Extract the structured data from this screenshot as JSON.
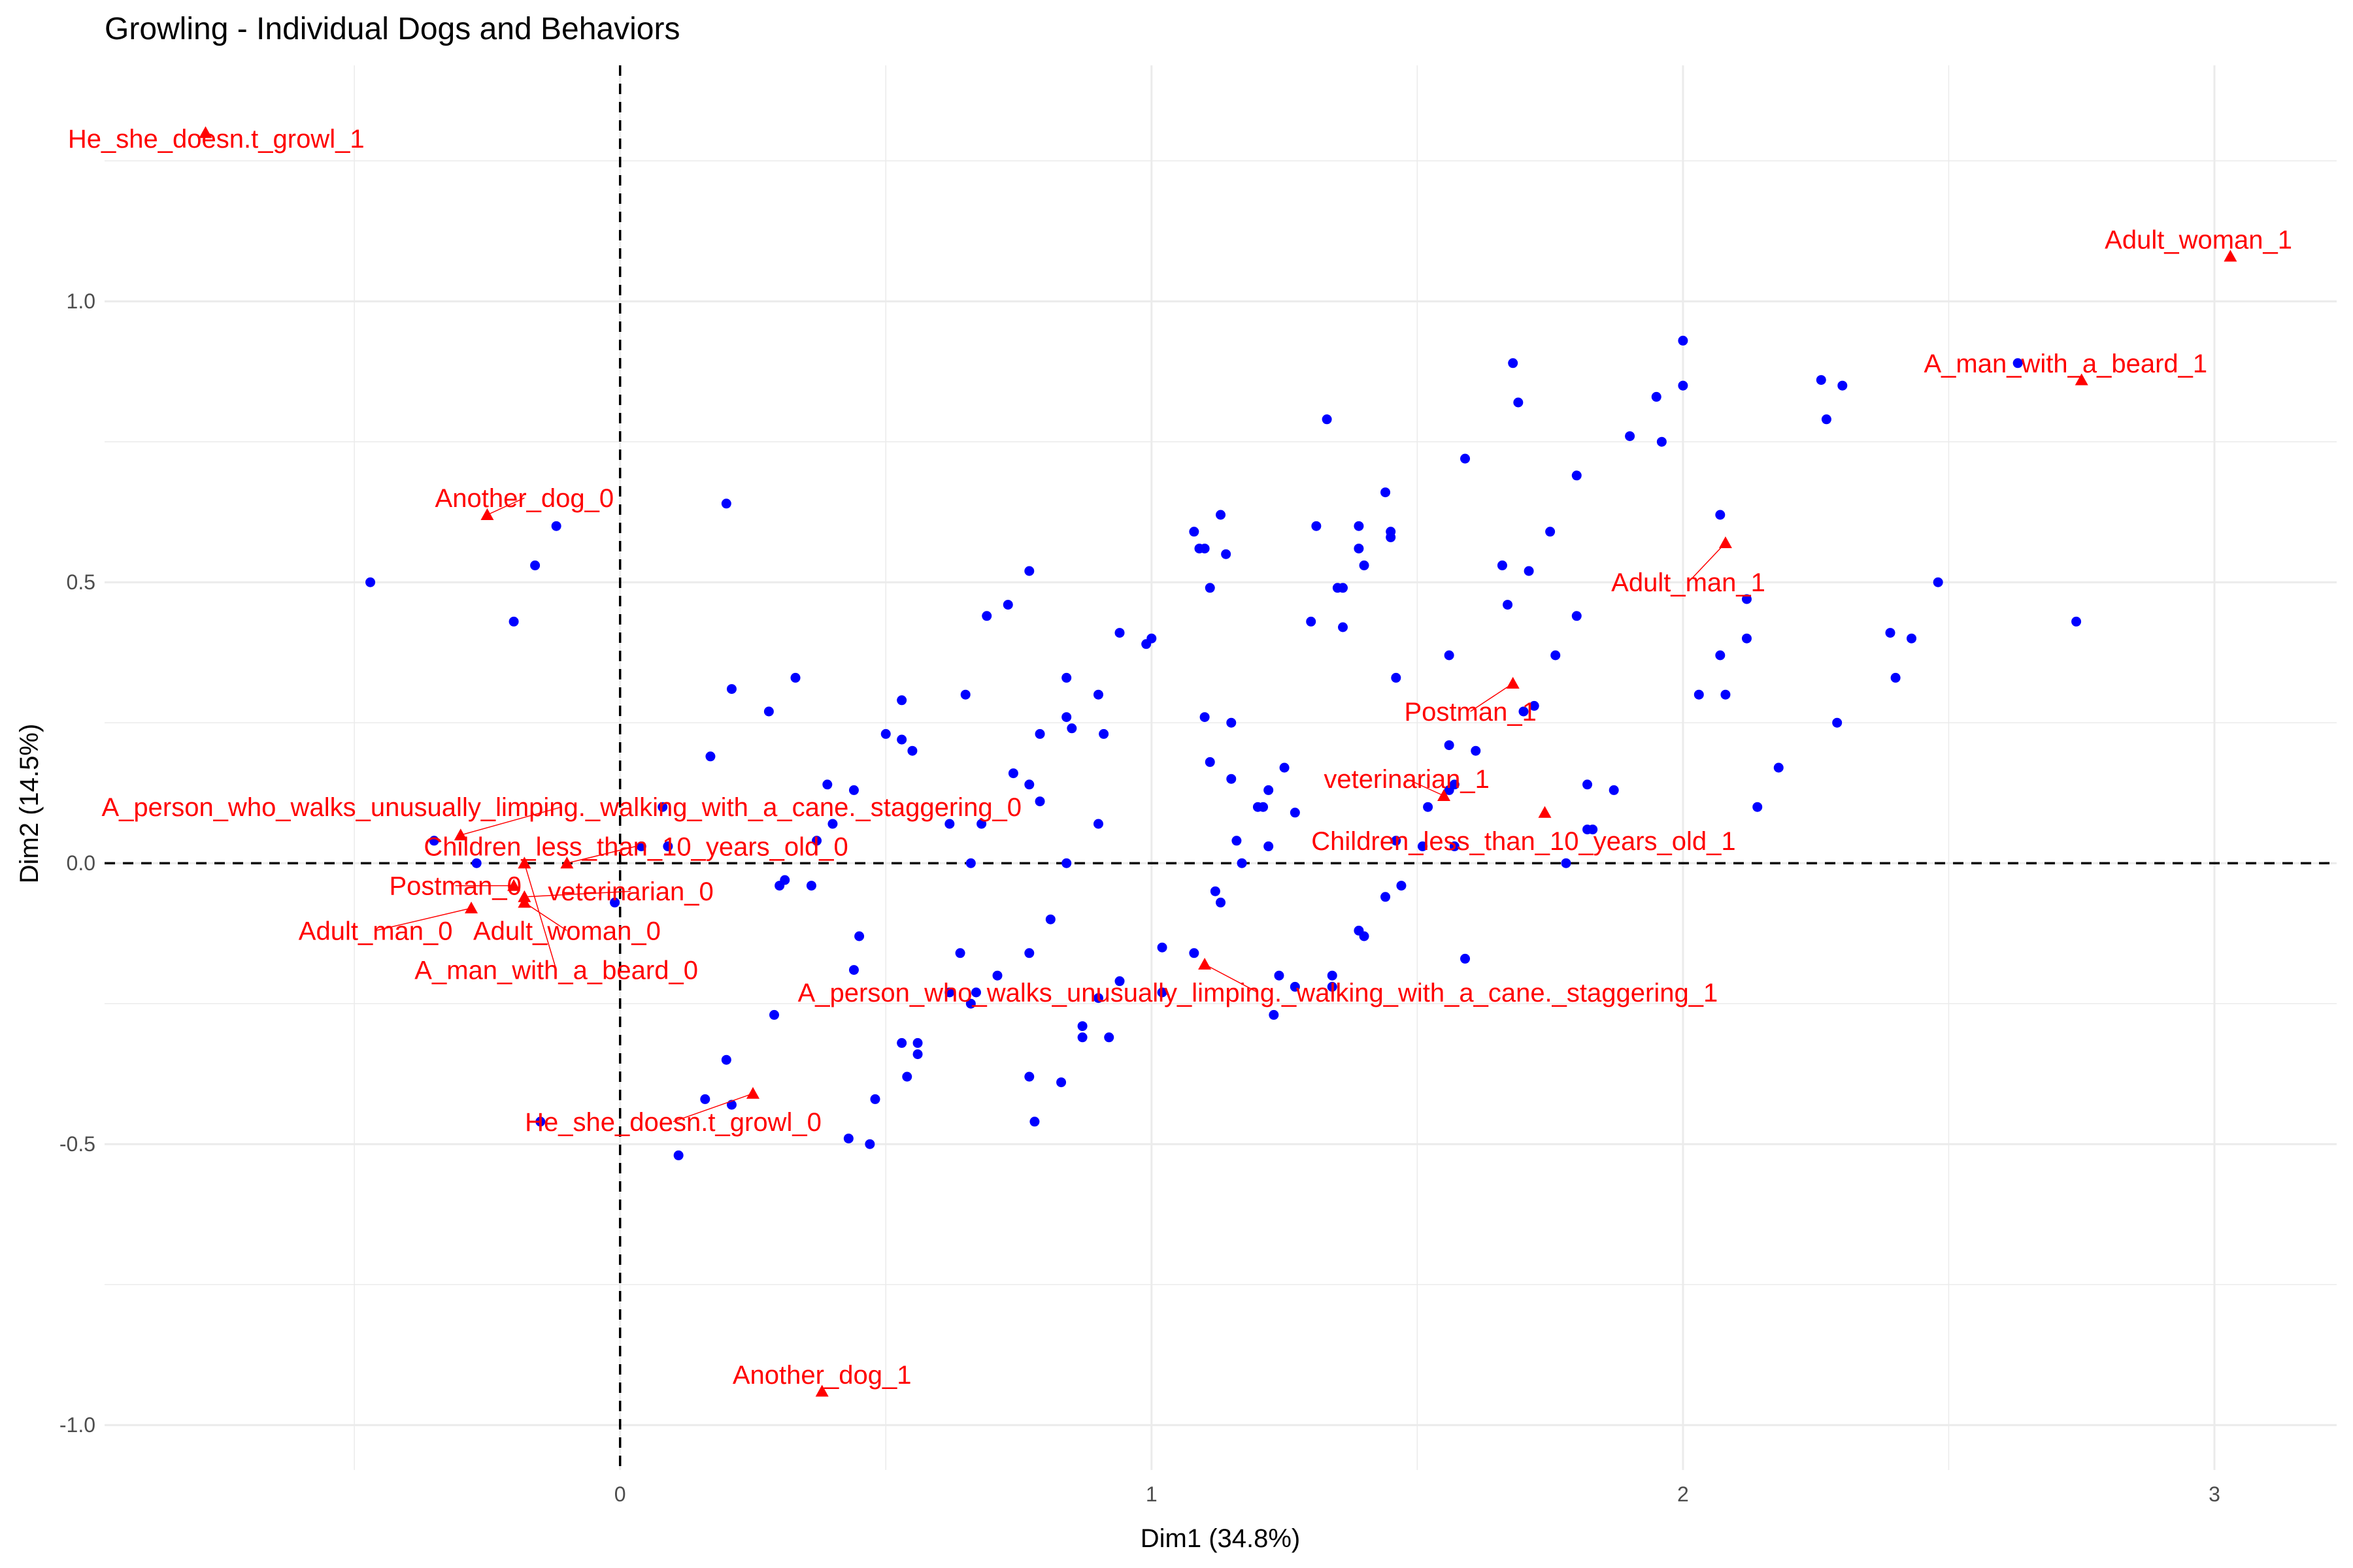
{
  "chart_data": {
    "type": "scatter",
    "title": "Growling - Individual Dogs and Behaviors",
    "xlabel": "Dim1 (34.8%)",
    "ylabel": "Dim2 (14.5%)",
    "xlim": [
      -0.97,
      3.23
    ],
    "ylim": [
      -1.08,
      1.42
    ],
    "x_ticks": [
      0,
      1,
      2,
      3
    ],
    "x_tick_labels": [
      "0",
      "1",
      "2",
      "3"
    ],
    "y_ticks": [
      -1.0,
      -0.5,
      0.0,
      0.5,
      1.0
    ],
    "y_tick_labels": [
      "-1.0",
      "-0.5",
      "0.0",
      "0.5",
      "1.0"
    ],
    "grid": true,
    "reference_lines": {
      "x": 0,
      "y": 0,
      "style": "dashed"
    },
    "colors": {
      "individuals": "#0000ff",
      "categories": "#ff0000",
      "grid": "#ebebeb",
      "reference": "#000000"
    },
    "individuals": [
      [
        -0.47,
        0.5
      ],
      [
        -0.2,
        0.43
      ],
      [
        -0.16,
        0.53
      ],
      [
        -0.12,
        0.6
      ],
      [
        0.2,
        0.64
      ],
      [
        -0.35,
        0.04
      ],
      [
        -0.27,
        0.0
      ],
      [
        -0.01,
        -0.07
      ],
      [
        0.04,
        0.03
      ],
      [
        0.08,
        0.1
      ],
      [
        0.09,
        0.03
      ],
      [
        0.17,
        0.19
      ],
      [
        0.21,
        0.31
      ],
      [
        0.28,
        0.27
      ],
      [
        0.33,
        0.33
      ],
      [
        0.37,
        0.04
      ],
      [
        0.36,
        -0.04
      ],
      [
        0.3,
        -0.04
      ],
      [
        0.31,
        -0.03
      ],
      [
        0.39,
        0.14
      ],
      [
        0.4,
        0.07
      ],
      [
        0.44,
        0.13
      ],
      [
        0.45,
        -0.13
      ],
      [
        0.5,
        0.23
      ],
      [
        0.53,
        0.29
      ],
      [
        0.53,
        0.22
      ],
      [
        0.55,
        0.2
      ],
      [
        0.65,
        0.3
      ],
      [
        0.69,
        0.44
      ],
      [
        0.73,
        0.46
      ],
      [
        0.77,
        0.52
      ],
      [
        0.68,
        0.07
      ],
      [
        0.62,
        0.07
      ],
      [
        0.66,
        0.0
      ],
      [
        0.74,
        0.16
      ],
      [
        0.77,
        0.14
      ],
      [
        0.79,
        0.11
      ],
      [
        0.79,
        0.23
      ],
      [
        0.84,
        0.33
      ],
      [
        0.84,
        0.26
      ],
      [
        0.85,
        0.24
      ],
      [
        0.9,
        0.3
      ],
      [
        0.91,
        0.23
      ],
      [
        0.9,
        0.07
      ],
      [
        0.94,
        0.41
      ],
      [
        0.99,
        0.39
      ],
      [
        1.0,
        0.4
      ],
      [
        0.84,
        0.0
      ],
      [
        0.81,
        -0.1
      ],
      [
        0.64,
        -0.16
      ],
      [
        0.67,
        -0.23
      ],
      [
        0.71,
        -0.2
      ],
      [
        0.77,
        -0.16
      ],
      [
        0.9,
        -0.24
      ],
      [
        0.94,
        -0.21
      ],
      [
        0.62,
        -0.23
      ],
      [
        0.66,
        -0.25
      ],
      [
        0.44,
        -0.19
      ],
      [
        0.29,
        -0.27
      ],
      [
        0.53,
        -0.32
      ],
      [
        0.56,
        -0.34
      ],
      [
        0.56,
        -0.32
      ],
      [
        0.54,
        -0.38
      ],
      [
        0.48,
        -0.42
      ],
      [
        0.43,
        -0.49
      ],
      [
        0.47,
        -0.5
      ],
      [
        0.2,
        -0.35
      ],
      [
        0.16,
        -0.42
      ],
      [
        0.21,
        -0.43
      ],
      [
        0.11,
        -0.52
      ],
      [
        -0.15,
        -0.46
      ],
      [
        0.77,
        -0.38
      ],
      [
        0.83,
        -0.39
      ],
      [
        0.78,
        -0.46
      ],
      [
        0.87,
        -0.29
      ],
      [
        0.87,
        -0.31
      ],
      [
        0.92,
        -0.31
      ],
      [
        1.02,
        -0.15
      ],
      [
        1.08,
        -0.16
      ],
      [
        1.02,
        -0.23
      ],
      [
        1.08,
        0.59
      ],
      [
        1.09,
        0.56
      ],
      [
        1.1,
        0.56
      ],
      [
        1.13,
        0.62
      ],
      [
        1.14,
        0.55
      ],
      [
        1.11,
        0.49
      ],
      [
        1.31,
        0.6
      ],
      [
        1.33,
        0.79
      ],
      [
        1.35,
        0.49
      ],
      [
        1.36,
        0.49
      ],
      [
        1.3,
        0.43
      ],
      [
        1.36,
        0.42
      ],
      [
        1.39,
        0.6
      ],
      [
        1.39,
        0.56
      ],
      [
        1.4,
        0.53
      ],
      [
        1.44,
        0.66
      ],
      [
        1.45,
        0.59
      ],
      [
        1.45,
        0.58
      ],
      [
        1.46,
        0.33
      ],
      [
        1.1,
        0.26
      ],
      [
        1.15,
        0.25
      ],
      [
        1.11,
        0.18
      ],
      [
        1.15,
        0.15
      ],
      [
        1.22,
        0.13
      ],
      [
        1.25,
        0.17
      ],
      [
        1.27,
        0.09
      ],
      [
        1.2,
        0.1
      ],
      [
        1.21,
        0.1
      ],
      [
        1.16,
        0.04
      ],
      [
        1.22,
        0.03
      ],
      [
        1.17,
        0.0
      ],
      [
        1.12,
        -0.05
      ],
      [
        1.13,
        -0.07
      ],
      [
        1.24,
        -0.2
      ],
      [
        1.27,
        -0.22
      ],
      [
        1.23,
        -0.27
      ],
      [
        1.34,
        -0.2
      ],
      [
        1.34,
        -0.22
      ],
      [
        1.39,
        -0.12
      ],
      [
        1.4,
        -0.13
      ],
      [
        1.44,
        -0.06
      ],
      [
        1.47,
        -0.04
      ],
      [
        1.46,
        0.04
      ],
      [
        1.51,
        0.03
      ],
      [
        1.52,
        0.1
      ],
      [
        1.56,
        0.21
      ],
      [
        1.57,
        0.14
      ],
      [
        1.56,
        0.13
      ],
      [
        1.61,
        0.2
      ],
      [
        1.56,
        0.37
      ],
      [
        1.57,
        0.03
      ],
      [
        1.59,
        -0.17
      ],
      [
        1.59,
        0.72
      ],
      [
        1.66,
        0.53
      ],
      [
        1.67,
        0.46
      ],
      [
        1.68,
        0.89
      ],
      [
        1.69,
        0.82
      ],
      [
        1.71,
        0.52
      ],
      [
        1.72,
        0.28
      ],
      [
        1.7,
        0.27
      ],
      [
        1.75,
        0.59
      ],
      [
        1.76,
        0.37
      ],
      [
        1.8,
        0.69
      ],
      [
        1.8,
        0.44
      ],
      [
        1.82,
        0.14
      ],
      [
        1.83,
        0.06
      ],
      [
        1.82,
        0.06
      ],
      [
        1.87,
        0.13
      ],
      [
        1.78,
        0.0
      ],
      [
        1.9,
        0.76
      ],
      [
        1.95,
        0.83
      ],
      [
        1.96,
        0.75
      ],
      [
        2.0,
        0.93
      ],
      [
        2.0,
        0.85
      ],
      [
        2.03,
        0.3
      ],
      [
        2.07,
        0.62
      ],
      [
        2.07,
        0.37
      ],
      [
        2.08,
        0.3
      ],
      [
        2.12,
        0.47
      ],
      [
        2.12,
        0.4
      ],
      [
        2.14,
        0.1
      ],
      [
        2.18,
        0.17
      ],
      [
        2.26,
        0.86
      ],
      [
        2.27,
        0.79
      ],
      [
        2.3,
        0.85
      ],
      [
        2.29,
        0.25
      ],
      [
        2.39,
        0.41
      ],
      [
        2.4,
        0.33
      ],
      [
        2.43,
        0.4
      ],
      [
        2.48,
        0.5
      ],
      [
        2.63,
        0.89
      ],
      [
        2.74,
        0.43
      ]
    ],
    "categories": [
      {
        "name": "He_she_doesn.t_growl_1",
        "x": -0.78,
        "y": 1.3,
        "label_x": -0.76,
        "label_y": 1.29
      },
      {
        "name": "Another_dog_0",
        "x": -0.25,
        "y": 0.62,
        "label_x": -0.18,
        "label_y": 0.65
      },
      {
        "name": "A_person_who_walks_unusually_limping._walking_with_a_cane._staggering_0",
        "x": -0.3,
        "y": 0.05,
        "label_x": -0.11,
        "label_y": 0.1
      },
      {
        "name": "Children_less_than_10_years_old_0",
        "x": -0.1,
        "y": 0.0,
        "label_x": 0.03,
        "label_y": 0.03
      },
      {
        "name": "Postman_0",
        "x": -0.2,
        "y": -0.04,
        "label_x": -0.31,
        "label_y": -0.04
      },
      {
        "name": "veterinarian_0",
        "x": -0.18,
        "y": -0.06,
        "label_x": 0.02,
        "label_y": -0.05
      },
      {
        "name": "Adult_man_0",
        "x": -0.28,
        "y": -0.08,
        "label_x": -0.46,
        "label_y": -0.12
      },
      {
        "name": "Adult_woman_0",
        "x": -0.18,
        "y": -0.07,
        "label_x": -0.1,
        "label_y": -0.12
      },
      {
        "name": "A_man_with_a_beard_0",
        "x": -0.18,
        "y": 0.0,
        "label_x": -0.12,
        "label_y": -0.19
      },
      {
        "name": "He_she_doesn.t_growl_0",
        "x": 0.25,
        "y": -0.41,
        "label_x": 0.1,
        "label_y": -0.46
      },
      {
        "name": "Another_dog_1",
        "x": 0.38,
        "y": -0.94,
        "label_x": 0.38,
        "label_y": -0.91
      },
      {
        "name": "A_person_who_walks_unusually_limping._walking_with_a_cane._staggering_1",
        "x": 1.1,
        "y": -0.18,
        "label_x": 1.2,
        "label_y": -0.23
      },
      {
        "name": "veterinarian_1",
        "x": 1.55,
        "y": 0.12,
        "label_x": 1.48,
        "label_y": 0.15
      },
      {
        "name": "Children_less_than_10_years_old_1",
        "x": 1.74,
        "y": 0.09,
        "label_x": 1.7,
        "label_y": 0.04
      },
      {
        "name": "Postman_1",
        "x": 1.68,
        "y": 0.32,
        "label_x": 1.6,
        "label_y": 0.27
      },
      {
        "name": "Adult_man_1",
        "x": 2.08,
        "y": 0.57,
        "label_x": 2.01,
        "label_y": 0.5
      },
      {
        "name": "A_man_with_a_beard_1",
        "x": 2.75,
        "y": 0.86,
        "label_x": 2.72,
        "label_y": 0.89
      },
      {
        "name": "Adult_woman_1",
        "x": 3.03,
        "y": 1.08,
        "label_x": 2.97,
        "label_y": 1.11
      }
    ]
  }
}
